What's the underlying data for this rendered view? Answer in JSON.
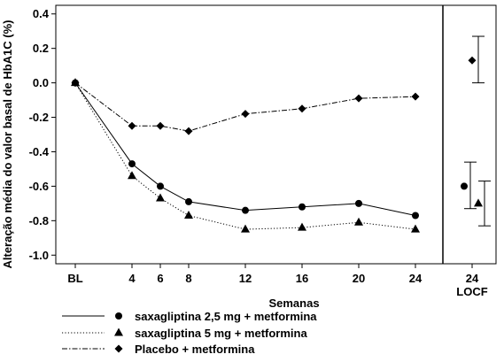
{
  "chart_data": {
    "type": "line",
    "xlabel": "Semanas",
    "ylabel": "Alteração média do valor basal de HbA1C (%)",
    "x_tick_labels": [
      "BL",
      "4",
      "6",
      "8",
      "12",
      "16",
      "20",
      "24"
    ],
    "x": [
      0,
      4,
      6,
      8,
      12,
      16,
      20,
      24
    ],
    "locf_panel": {
      "tick_label": "24",
      "sub_label": "LOCF"
    },
    "ylim": [
      -1.05,
      0.45
    ],
    "y_ticks": [
      "0.4",
      "0.2",
      "0.0",
      "-0.2",
      "-0.4",
      "-0.6",
      "-0.8",
      "-1.0"
    ],
    "y_tick_values": [
      0.4,
      0.2,
      0.0,
      -0.2,
      -0.4,
      -0.6,
      -0.8,
      -1.0
    ],
    "grid": false,
    "legend_position": "bottom",
    "series": [
      {
        "name": "saxagliptina 2,5 mg + metformina",
        "marker": "circle",
        "line_style": "solid",
        "values": [
          0.0,
          -0.47,
          -0.6,
          -0.69,
          -0.74,
          -0.72,
          -0.7,
          -0.77
        ],
        "locf": {
          "value": -0.6,
          "lower": -0.73,
          "upper": -0.46
        }
      },
      {
        "name": "saxagliptina 5 mg + metformina",
        "marker": "triangle",
        "line_style": "dotted",
        "values": [
          0.0,
          -0.54,
          -0.67,
          -0.77,
          -0.85,
          -0.84,
          -0.81,
          -0.85
        ],
        "locf": {
          "value": -0.7,
          "lower": -0.83,
          "upper": -0.57
        }
      },
      {
        "name": "Placebo + metformina",
        "marker": "diamond",
        "line_style": "dashdot",
        "values": [
          0.0,
          -0.25,
          -0.25,
          -0.28,
          -0.18,
          -0.15,
          -0.09,
          -0.08
        ],
        "locf": {
          "value": 0.13,
          "lower": 0.0,
          "upper": 0.27
        }
      }
    ]
  }
}
